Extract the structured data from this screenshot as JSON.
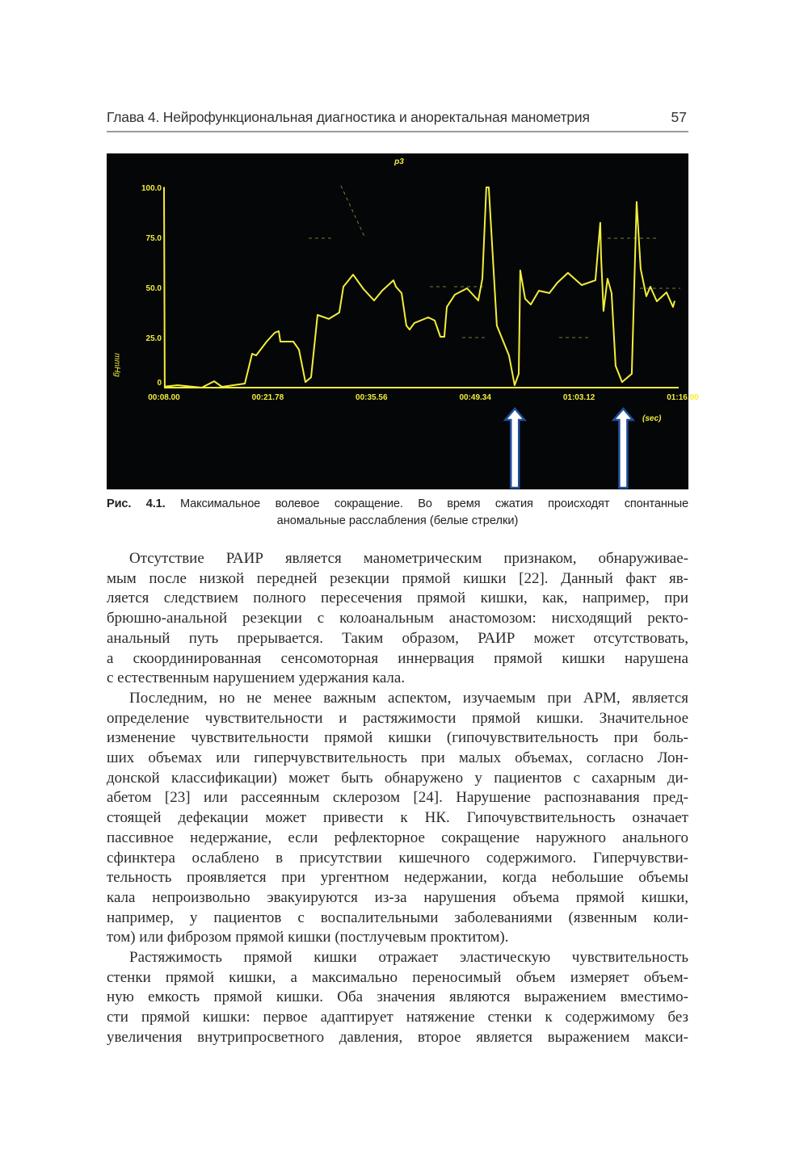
{
  "header": {
    "chapter_title": "Глава 4. Нейрофункциональная диагностика и аноректальная манометрия",
    "page_number": "57"
  },
  "figure": {
    "caption_label": "Рис. 4.1.",
    "caption_line1": "Максимальное волевое сокращение. Во время сжатия происходят спонтанные",
    "caption_line2": "аномальные расслабления (белые стрелки)"
  },
  "chart_data": {
    "type": "line",
    "title": "p3",
    "xlabel": "(sec)",
    "ylabel": "mmHg",
    "xlim": [
      8.0,
      76.9
    ],
    "ylim": [
      0,
      100
    ],
    "x_ticks": [
      8.0,
      21.78,
      35.56,
      49.34,
      63.12,
      76.9
    ],
    "x_tick_labels": [
      "00:08.00",
      "00:21.78",
      "00:35.56",
      "00:49.34",
      "01:03.12",
      "01:16.90"
    ],
    "y_ticks": [
      0,
      25,
      50,
      75,
      100
    ],
    "y_tick_labels": [
      "0",
      "25.0",
      "50.0",
      "75.0",
      "100.0"
    ],
    "grid": false,
    "colors": {
      "background": "#050608",
      "trace": "#f2ee3a",
      "arrow_fill": "#ffffff",
      "arrow_outline": "#1f4e9c"
    },
    "annotations": [
      {
        "type": "arrow",
        "x": 54.6,
        "meaning": "white arrow"
      },
      {
        "type": "arrow",
        "x": 69.0,
        "meaning": "white arrow"
      }
    ],
    "series": [
      {
        "x": [
          8.0,
          8.1,
          9.8,
          13.0,
          14.65,
          15.7,
          18.73,
          19.7,
          20.23,
          21.63,
          22.7,
          23.24,
          23.45,
          25.17,
          25.92,
          26.78,
          27.53,
          28.39,
          29.89,
          31.28,
          31.82,
          33.11,
          34.5,
          35.9,
          36.97,
          38.47,
          38.8,
          39.55,
          40.19,
          40.62,
          41.26,
          43.09,
          43.95,
          44.7,
          45.23,
          45.56,
          46.63,
          48.24,
          49.74,
          50.28,
          50.81,
          51.13,
          52.21,
          53.82,
          54.57,
          55.11,
          55.32,
          55.96,
          56.71,
          57.79,
          59.18,
          60.25,
          61.65,
          63.47,
          65.3,
          65.94,
          66.05,
          66.37,
          66.91,
          67.44,
          67.98,
          68.84,
          70.13,
          70.77,
          71.31,
          72.06,
          72.6,
          73.45,
          74.74,
          75.6,
          75.81
        ],
        "y": [
          100,
          0.5,
          1.2,
          0,
          3.2,
          0.4,
          2.0,
          16.9,
          16.1,
          23.0,
          27.4,
          28.2,
          23.0,
          23.0,
          19.0,
          2.8,
          5.2,
          36.3,
          34.3,
          37.5,
          50.4,
          56.4,
          49.2,
          43.5,
          48.4,
          53.6,
          50.4,
          47.2,
          31.0,
          29.0,
          32.3,
          35.1,
          33.5,
          25.4,
          25.4,
          40.3,
          46.4,
          49.6,
          43.5,
          54.4,
          100,
          100,
          31.0,
          16.1,
          1.2,
          6.9,
          58.5,
          44.4,
          41.5,
          48.4,
          47.2,
          52.4,
          57.3,
          51.2,
          53.6,
          82.3,
          65.7,
          38.3,
          54.4,
          47.2,
          10.9,
          2.8,
          6.9,
          92.7,
          59.3,
          45.6,
          50.4,
          43.1,
          47.6,
          40.3,
          43.1
        ]
      }
    ]
  },
  "body": {
    "paragraphs": [
      [
        "Отсутствие РАИР является манометрическим признаком, обнаруживае-",
        "мым после низкой передней резекции прямой кишки [22]. Данный факт яв-",
        "ляется следствием полного пересечения прямой кишки, как, например, при",
        "брюшно-анальной резекции с колоанальным анастомозом: нисходящий ректо-",
        "анальный путь прерывается. Таким образом, РАИР может отсутствовать,",
        "а скоординированная сенсомоторная иннервация прямой кишки нарушена",
        "с естественным нарушением удержания кала."
      ],
      [
        "Последним, но не менее важным аспектом, изучаемым при АРМ, является",
        "определение чувствительности и растяжимости прямой кишки. Значительное",
        "изменение чувствительности прямой кишки (гипочувствительность при боль-",
        "ших объемах или гиперчувствительность при малых объемах, согласно Лон-",
        "донской классификации) может быть обнаружено у пациентов с сахарным ди-",
        "абетом [23] или рассеянным склерозом [24]. Нарушение распознавания пред-",
        "стоящей дефекации может привести к НК. Гипочувствительность означает",
        "пассивное недержание, если рефлекторное сокращение наружного анального",
        "сфинктера ослаблено в присутствии кишечного содержимого. Гиперчувстви-",
        "тельность проявляется при ургентном недержании, когда небольшие объемы",
        "кала непроизвольно эвакуируются из-за нарушения объема прямой кишки,",
        "например, у пациентов с воспалительными заболеваниями (язвенным коли-",
        "том) или фиброзом прямой кишки (постлучевым проктитом)."
      ],
      [
        "Растяжимость прямой кишки отражает эластическую чувствительность",
        "стенки прямой кишки, а максимально переносимый объем измеряет объем-",
        "ную емкость прямой кишки. Оба значения являются выражением вместимо-",
        "сти прямой кишки: первое адаптирует натяжение стенки к содержимому без",
        "увеличения внутрипросветного давления, второе является выражением макси-"
      ]
    ]
  }
}
